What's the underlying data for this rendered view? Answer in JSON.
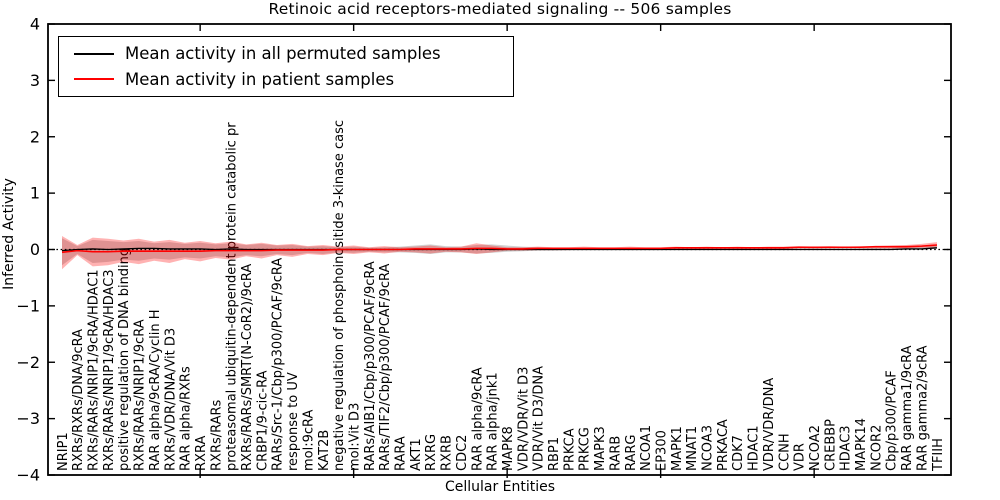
{
  "title": "Retinoic acid receptors-mediated signaling -- 506 samples",
  "legend": {
    "entries": [
      {
        "label": "Mean activity in all permuted samples",
        "color": "#000000"
      },
      {
        "label": "Mean activity in patient samples",
        "color": "#ff0000"
      }
    ]
  },
  "chart_data": {
    "type": "line",
    "title": "Retinoic acid receptors-mediated signaling -- 506 samples",
    "xlabel": "Cellular Entities",
    "ylabel": "Inferred Activity",
    "ylim": [
      -4,
      4
    ],
    "grid": false,
    "legend_position": "upper left",
    "yticks": [
      {
        "v": 4,
        "label": "4"
      },
      {
        "v": 3,
        "label": "3"
      },
      {
        "v": 2,
        "label": "2"
      },
      {
        "v": 1,
        "label": "1"
      },
      {
        "v": 0,
        "label": "0"
      },
      {
        "v": -1,
        "label": "−1"
      },
      {
        "v": -2,
        "label": "−2"
      },
      {
        "v": -3,
        "label": "−3"
      },
      {
        "v": -4,
        "label": "−4"
      }
    ],
    "xtick_indices": [
      9,
      19,
      29,
      39,
      49
    ],
    "categories": [
      "NRIP1",
      "RXRs/RXRs/DNA/9cRA",
      "RXRs/RARs/NRIP1/9cRA/HDAC1",
      "RXRs/RARs/NRIP1/9cRA/HDAC3",
      "positive regulation of DNA binding",
      "RXRs/RARs/NRIP1/9cRA",
      "RAR alpha/9cRA/Cyclin H",
      "RXRs/VDR/DNA/Vit D3",
      "RAR alpha/RXRs",
      "RXRA",
      "RXRs/RARs",
      "proteasomal ubiquitin-dependent protein catabolic pr",
      "RXRs/RARs/SMRT(N-CoR2)/9cRA",
      "CRBP1/9-cic-RA",
      "RARs/Src-1/Cbp/p300/PCAF/9cRA",
      "response to UV",
      "mol:9cRA",
      "KAT2B",
      "negative regulation of phosphoinositide 3-kinase casc",
      "mol:Vit D3",
      "RARs/AIB1/Cbp/p300/PCAF/9cRA",
      "RARs/TIF2/Cbp/p300/PCAF/9cRA",
      "RARA",
      "AKT1",
      "RXRG",
      "RXRB",
      "CDC2",
      "RAR alpha/9cRA",
      "RAR alpha/jnk1",
      "MAPK8",
      "VDR/VDR/Vit D3",
      "VDR/Vit D3/DNA",
      "RBP1",
      "PRKCA",
      "PRKCG",
      "MAPK3",
      "RARB",
      "RARG",
      "NCOA1",
      "EP300",
      "MAPK1",
      "MNAT1",
      "NCOA3",
      "PRKACA",
      "CDK7",
      "HDAC1",
      "VDR/VDR/DNA",
      "CCNH",
      "VDR",
      "NCOA2",
      "CREBBP",
      "HDAC3",
      "MAPK14",
      "NCOR2",
      "Cbp/p300/PCAF",
      "RAR gamma1/9cRA",
      "RAR gamma2/9cRA",
      "TFIIH"
    ],
    "series": [
      {
        "name": "Mean activity in all permuted samples",
        "color": "#000000",
        "values": [
          -0.02,
          0.0,
          0.01,
          0.0,
          0.01,
          0.02,
          0.02,
          0.01,
          0.01,
          0.01,
          0.0,
          0.01,
          0.0,
          0.0,
          0.0,
          0.0,
          0.0,
          0.0,
          0.0,
          0.0,
          0.0,
          0.0,
          0.0,
          0.0,
          0.0,
          0.0,
          0.0,
          0.01,
          0.0,
          0.0,
          0.0,
          0.0,
          0.0,
          0.0,
          0.0,
          0.0,
          0.0,
          0.0,
          0.0,
          0.0,
          0.0,
          0.0,
          0.0,
          0.0,
          0.0,
          0.0,
          0.0,
          0.0,
          0.0,
          0.0,
          0.0,
          0.0,
          0.0,
          0.0,
          0.0,
          0.01,
          0.01,
          0.03
        ]
      },
      {
        "name": "Mean activity in patient samples",
        "color": "#ff0000",
        "values": [
          -0.05,
          -0.02,
          -0.04,
          -0.04,
          -0.03,
          -0.03,
          -0.03,
          -0.03,
          -0.03,
          -0.03,
          -0.02,
          -0.02,
          -0.02,
          -0.02,
          -0.01,
          -0.01,
          -0.01,
          -0.01,
          0.0,
          0.0,
          0.0,
          0.0,
          0.0,
          0.01,
          0.01,
          0.01,
          0.01,
          0.02,
          0.02,
          0.01,
          0.01,
          0.02,
          0.02,
          0.02,
          0.02,
          0.02,
          0.02,
          0.02,
          0.02,
          0.02,
          0.03,
          0.03,
          0.03,
          0.03,
          0.03,
          0.03,
          0.03,
          0.03,
          0.04,
          0.04,
          0.04,
          0.04,
          0.04,
          0.05,
          0.05,
          0.05,
          0.06,
          0.08
        ]
      }
    ],
    "bands": [
      {
        "name": "permuted-samples-band",
        "color": "rgba(0,0,0,0.18)",
        "upper": [
          0.2,
          0.06,
          0.17,
          0.15,
          0.13,
          0.15,
          0.11,
          0.13,
          0.1,
          0.12,
          0.09,
          0.11,
          0.08,
          0.1,
          0.07,
          0.08,
          0.05,
          0.06,
          0.04,
          0.05,
          0.03,
          0.04,
          0.05,
          0.07,
          0.09,
          0.06,
          0.05,
          0.08,
          0.09,
          0.07,
          0.05,
          0.04,
          0.03,
          0.03,
          0.03,
          0.03,
          0.02,
          0.03,
          0.02,
          0.02,
          0.02,
          0.02,
          0.02,
          0.02,
          0.02,
          0.02,
          0.02,
          0.02,
          0.02,
          0.02,
          0.02,
          0.02,
          0.02,
          0.03,
          0.03,
          0.04,
          0.06,
          0.09
        ],
        "lower": [
          -0.28,
          -0.08,
          -0.24,
          -0.22,
          -0.18,
          -0.2,
          -0.16,
          -0.18,
          -0.14,
          -0.16,
          -0.12,
          -0.14,
          -0.1,
          -0.12,
          -0.08,
          -0.1,
          -0.06,
          -0.08,
          -0.05,
          -0.06,
          -0.04,
          -0.05,
          -0.05,
          -0.06,
          -0.08,
          -0.05,
          -0.05,
          -0.07,
          -0.06,
          -0.04,
          -0.03,
          -0.02,
          -0.02,
          -0.01,
          -0.01,
          -0.01,
          -0.01,
          -0.01,
          -0.01,
          -0.01,
          0.0,
          0.0,
          0.0,
          0.0,
          0.0,
          0.0,
          0.0,
          0.0,
          0.0,
          0.0,
          0.0,
          0.0,
          0.0,
          0.0,
          0.0,
          0.01,
          0.01,
          0.01
        ]
      },
      {
        "name": "patient-samples-band",
        "color": "rgba(255,0,0,0.30)",
        "upper": [
          0.24,
          0.08,
          0.21,
          0.19,
          0.16,
          0.19,
          0.14,
          0.17,
          0.12,
          0.15,
          0.11,
          0.14,
          0.09,
          0.12,
          0.08,
          0.1,
          0.06,
          0.08,
          0.05,
          0.07,
          0.04,
          0.06,
          0.04,
          0.05,
          0.07,
          0.04,
          0.05,
          0.11,
          0.07,
          0.04,
          0.04,
          0.05,
          0.04,
          0.04,
          0.05,
          0.04,
          0.04,
          0.05,
          0.04,
          0.04,
          0.05,
          0.04,
          0.05,
          0.04,
          0.05,
          0.04,
          0.05,
          0.05,
          0.06,
          0.05,
          0.06,
          0.05,
          0.06,
          0.06,
          0.07,
          0.08,
          0.1,
          0.13
        ],
        "lower": [
          -0.35,
          -0.1,
          -0.3,
          -0.28,
          -0.22,
          -0.26,
          -0.2,
          -0.24,
          -0.17,
          -0.21,
          -0.15,
          -0.18,
          -0.12,
          -0.16,
          -0.1,
          -0.13,
          -0.08,
          -0.1,
          -0.06,
          -0.08,
          -0.05,
          -0.07,
          -0.04,
          -0.05,
          -0.07,
          -0.04,
          -0.05,
          -0.08,
          -0.05,
          -0.02,
          -0.02,
          -0.01,
          -0.01,
          -0.01,
          0.0,
          0.0,
          0.0,
          0.0,
          0.0,
          0.0,
          0.01,
          0.0,
          0.01,
          0.01,
          0.01,
          0.01,
          0.01,
          0.01,
          0.02,
          0.01,
          0.02,
          0.02,
          0.02,
          0.02,
          0.02,
          0.02,
          0.03,
          0.03
        ]
      }
    ],
    "zero_line": {
      "y": 0,
      "style": "dotted",
      "color": "#000000"
    }
  }
}
